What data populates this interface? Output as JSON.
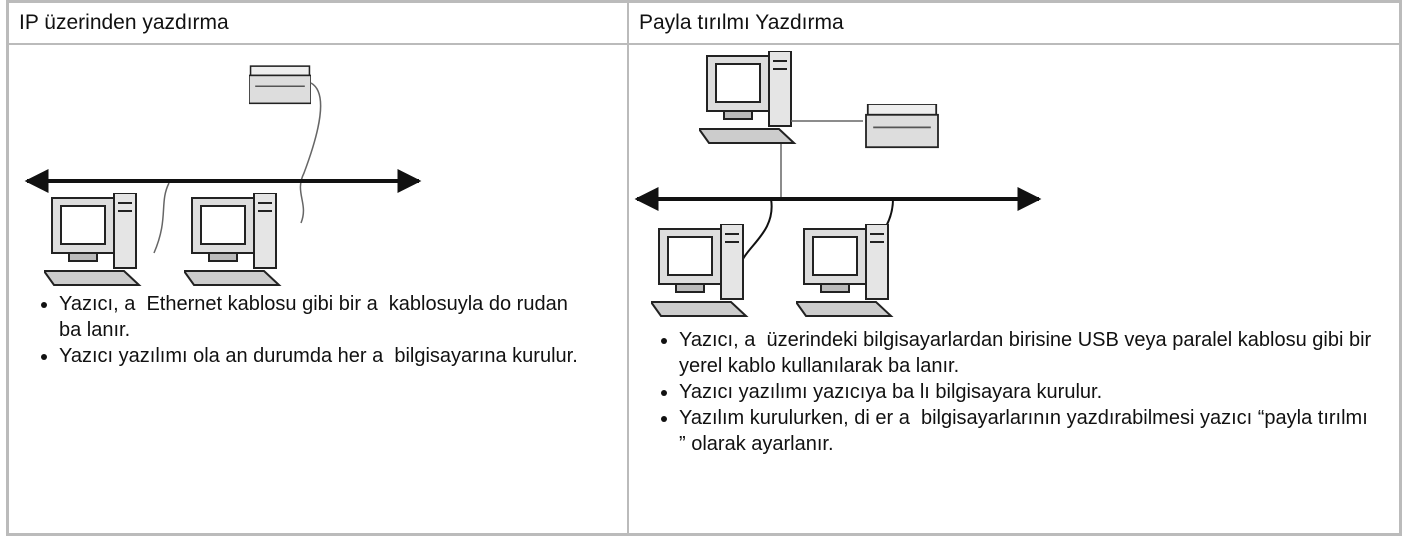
{
  "columns": [
    {
      "header": "IP üzerinden yazdırma",
      "bullets": [
        "Yazıcı, a  Ethernet kablosu gibi bir a  kablosuyla do rudan ba lanır.",
        "Yazıcı yazılımı ola an durumda her a  bilgisayarına kurulur."
      ]
    },
    {
      "header": "Payla tırılmı  Yazdırma",
      "bullets": [
        "Yazıcı, a  üzerindeki bilgisayarlardan birisine USB veya paralel kablosu gibi bir yerel kablo kullanılarak ba lanır.",
        "Yazıcı yazılımı yazıcıya ba lı bilgisayara kurulur.",
        "Yazılım kurulurken, di er a  bilgisayarlarının yazdırabilmesi yazıcı “payla tırılmı ” olarak ayarlanır."
      ]
    }
  ]
}
